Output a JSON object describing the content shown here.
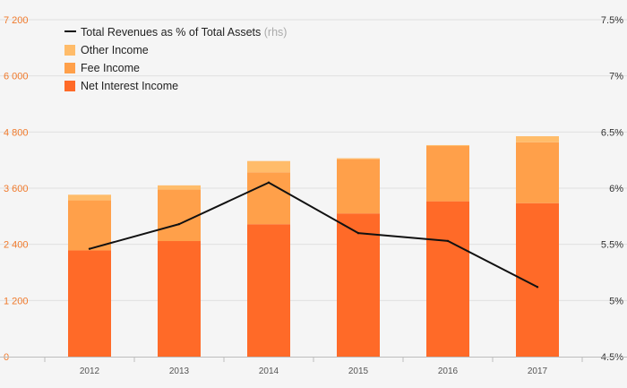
{
  "chart_data": {
    "type": "bar",
    "stacked": true,
    "categories": [
      "2012",
      "2013",
      "2014",
      "2015",
      "2016",
      "2017"
    ],
    "series": [
      {
        "name": "Net Interest Income",
        "values": [
          2270,
          2470,
          2830,
          3060,
          3320,
          3280
        ],
        "color": "#ff6a28"
      },
      {
        "name": "Fee Income",
        "values": [
          1070,
          1100,
          1110,
          1160,
          1180,
          1300
        ],
        "color": "#ffa04a"
      },
      {
        "name": "Other Income",
        "values": [
          120,
          90,
          240,
          20,
          20,
          130
        ],
        "color": "#ffbc6a"
      }
    ],
    "line_series": {
      "name": "Total Revenues as % of Total Assets",
      "name_suffix": "(rhs)",
      "axis": "right",
      "values": [
        5.46,
        5.68,
        6.05,
        5.6,
        5.53,
        5.12
      ],
      "color": "#111111"
    },
    "ylim_left": [
      0,
      7200
    ],
    "yticks_left": [
      "0",
      "1 200",
      "2 400",
      "3 600",
      "4 800",
      "6 000",
      "7 200"
    ],
    "ylim_right": [
      4.5,
      7.5
    ],
    "yticks_right": [
      "4.5%",
      "5%",
      "5.5%",
      "6%",
      "6.5%",
      "7%",
      "7.5%"
    ],
    "grid": true,
    "legend_position": "top-left"
  }
}
